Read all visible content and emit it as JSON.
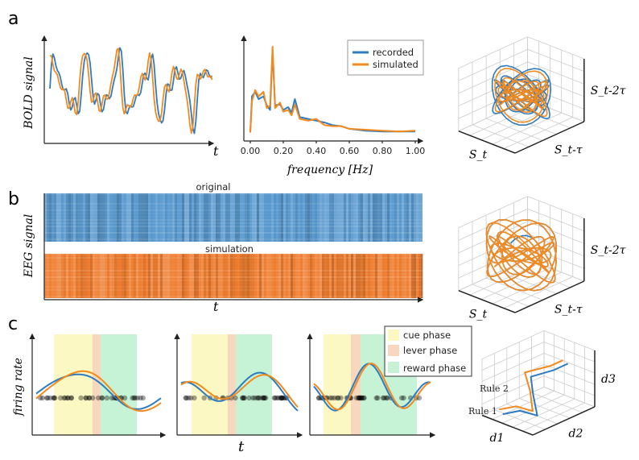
{
  "panels": {
    "a": "a",
    "b": "b",
    "c": "c"
  },
  "colors": {
    "recorded": "#2f7bbf",
    "simulated": "#f28a1e",
    "cue": "#fbf8c4",
    "lever": "#f8d7bf",
    "reward": "#c6f2d5"
  },
  "chart_data": [
    {
      "type": "line",
      "panel": "a",
      "ylabel": "BOLD signal",
      "xlabel": "t",
      "series": [
        {
          "name": "recorded"
        },
        {
          "name": "simulated"
        }
      ]
    },
    {
      "type": "line",
      "panel": "a",
      "xlabel": "frequency [Hz]",
      "xlim": [
        0,
        1
      ],
      "xticks": [
        "0.00",
        "0.20",
        "0.40",
        "0.60",
        "0.80",
        "1.00"
      ],
      "legend": {
        "placement": "top-right",
        "entries": [
          "recorded",
          "simulated"
        ]
      },
      "x": [
        0.0,
        0.01,
        0.03,
        0.05,
        0.08,
        0.1,
        0.12,
        0.135,
        0.15,
        0.18,
        0.2,
        0.23,
        0.25,
        0.27,
        0.3,
        0.35,
        0.4,
        0.45,
        0.5,
        0.55,
        0.6,
        0.7,
        0.8,
        0.9,
        1.0
      ],
      "series": [
        {
          "name": "recorded",
          "values": [
            0.05,
            0.45,
            0.5,
            0.42,
            0.45,
            0.35,
            0.3,
            0.95,
            0.35,
            0.36,
            0.3,
            0.33,
            0.27,
            0.42,
            0.22,
            0.2,
            0.18,
            0.16,
            0.13,
            0.12,
            0.09,
            0.07,
            0.06,
            0.06,
            0.06
          ]
        },
        {
          "name": "simulated",
          "values": [
            0.05,
            0.4,
            0.52,
            0.45,
            0.5,
            0.32,
            0.35,
            1.0,
            0.32,
            0.38,
            0.28,
            0.3,
            0.24,
            0.36,
            0.2,
            0.18,
            0.2,
            0.13,
            0.12,
            0.12,
            0.09,
            0.08,
            0.07,
            0.06,
            0.07
          ]
        }
      ]
    },
    {
      "type": "scatter",
      "panel": "a",
      "projection": "3d",
      "axes": [
        "S_t",
        "S_t-τ",
        "S_t-2τ"
      ]
    },
    {
      "type": "heatmap",
      "panel": "b",
      "ylabel": "EEG signal",
      "xlabel": "t",
      "titles": [
        "original",
        "simulation"
      ]
    },
    {
      "type": "scatter",
      "panel": "b",
      "projection": "3d",
      "axes": [
        "S_t",
        "S_t-τ",
        "S_t-2τ"
      ]
    },
    {
      "type": "line",
      "panel": "c",
      "ylabel": "firing rate",
      "xlabel": "t",
      "legend": {
        "placement": "top-right",
        "entries": [
          "cue phase",
          "lever phase",
          "reward phase"
        ]
      }
    },
    {
      "type": "line",
      "panel": "c",
      "projection": "3d",
      "axes": [
        "d1",
        "d2",
        "d3"
      ],
      "annotations": [
        "Rule 1",
        "Rule 2"
      ]
    }
  ]
}
